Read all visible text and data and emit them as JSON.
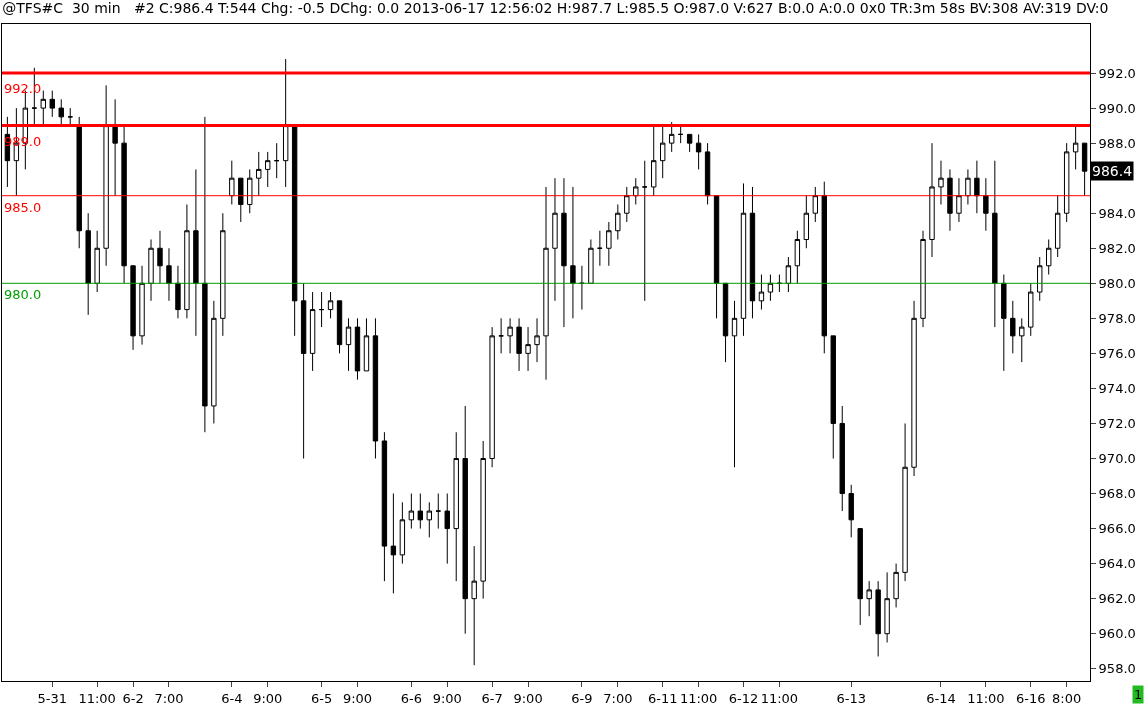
{
  "chart_data": {
    "type": "candlestick",
    "title": "@TFS#C  30 min   #2 C:986.4 T:544 Chg: -0.5 DChg: 0.0 2013-06-17 12:56:02 H:987.7 L:985.5 O:987.0 V:627 B:0.0 A:0.0 0x0 TR:3m 58s BV:308 AV:319 DV:0",
    "categories": [
      null,
      null,
      null,
      null,
      null,
      "5-31",
      null,
      null,
      null,
      null,
      "11:00",
      null,
      null,
      null,
      "6-2",
      null,
      null,
      null,
      "7:00",
      null,
      null,
      null,
      null,
      null,
      null,
      "6-4",
      null,
      null,
      null,
      "9:00",
      null,
      null,
      null,
      null,
      null,
      "6-5",
      null,
      null,
      null,
      "9:00",
      null,
      null,
      null,
      null,
      null,
      "6-6",
      null,
      null,
      null,
      "9:00",
      null,
      null,
      null,
      null,
      "6-7",
      null,
      null,
      null,
      "9:00",
      null,
      null,
      null,
      null,
      null,
      "6-9",
      null,
      null,
      null,
      "7:00",
      null,
      null,
      null,
      null,
      "6-11",
      null,
      null,
      null,
      "11:00",
      null,
      null,
      null,
      null,
      "6-12",
      null,
      null,
      null,
      "11:00",
      null,
      null,
      null,
      null,
      null,
      null,
      null,
      "6-13",
      null,
      null,
      null,
      null,
      null,
      null,
      null,
      null,
      null,
      "6-14",
      null,
      null,
      null,
      null,
      "11:00",
      null,
      null,
      null,
      null,
      "6-16",
      null,
      null,
      null,
      "8:00",
      null,
      null
    ],
    "ohlc": [
      [
        988.5,
        989.5,
        985.5,
        987
      ],
      [
        987,
        990,
        985,
        988
      ],
      [
        988,
        991,
        986.5,
        990
      ],
      [
        990,
        992.3,
        989,
        990
      ],
      [
        990,
        991,
        989,
        990.5
      ],
      [
        990.5,
        991,
        989.5,
        990
      ],
      [
        990,
        990.5,
        989,
        989.5
      ],
      [
        989.5,
        990,
        989,
        989.5
      ],
      [
        989,
        989.5,
        982,
        983
      ],
      [
        983,
        984,
        978.2,
        980
      ],
      [
        980,
        983,
        979.5,
        982
      ],
      [
        982,
        991.3,
        981,
        989
      ],
      [
        989,
        990.5,
        985,
        988
      ],
      [
        988,
        989,
        980,
        981
      ],
      [
        981,
        981,
        976.2,
        977
      ],
      [
        977,
        981,
        976.5,
        980
      ],
      [
        980,
        982.5,
        979,
        982
      ],
      [
        982,
        983,
        980,
        981
      ],
      [
        981,
        982,
        979,
        980
      ],
      [
        980,
        981,
        978,
        978.5
      ],
      [
        978.5,
        984.5,
        978,
        983
      ],
      [
        983,
        986.5,
        977,
        980
      ],
      [
        980,
        989.5,
        971.5,
        973
      ],
      [
        973,
        979,
        972,
        978
      ],
      [
        978,
        984,
        977,
        983
      ],
      [
        985,
        987,
        984.5,
        986
      ],
      [
        986,
        986,
        983.5,
        984.5
      ],
      [
        984.5,
        986.5,
        984,
        986
      ],
      [
        986,
        987.5,
        985,
        986.5
      ],
      [
        986.5,
        987.5,
        985.5,
        987
      ],
      [
        987,
        988,
        986,
        987
      ],
      [
        987,
        992.8,
        985.5,
        989
      ],
      [
        989,
        989,
        977,
        979
      ],
      [
        979,
        980,
        970,
        976
      ],
      [
        976,
        979.5,
        975,
        978.5
      ],
      [
        978.5,
        979.5,
        977.5,
        978.5
      ],
      [
        978.5,
        979.5,
        978,
        979
      ],
      [
        979,
        979,
        976,
        976.5
      ],
      [
        976.5,
        978,
        975,
        977.5
      ],
      [
        977.5,
        978,
        974.5,
        975
      ],
      [
        975,
        978,
        975,
        977
      ],
      [
        977,
        978,
        970,
        971
      ],
      [
        971,
        971.5,
        963,
        965
      ],
      [
        965,
        968,
        962.3,
        964.5
      ],
      [
        964.5,
        967.5,
        964,
        966.5
      ],
      [
        966.5,
        968,
        966,
        967
      ],
      [
        967,
        968,
        966,
        966.5
      ],
      [
        966.5,
        967.5,
        965.5,
        967
      ],
      [
        967,
        968,
        966,
        967
      ],
      [
        967,
        968,
        964,
        966
      ],
      [
        966,
        971.5,
        963,
        970
      ],
      [
        970,
        973,
        960,
        962
      ],
      [
        962,
        965,
        958.2,
        963
      ],
      [
        963,
        971,
        962,
        970
      ],
      [
        970,
        977.5,
        969.5,
        977
      ],
      [
        977,
        978,
        976,
        977
      ],
      [
        977,
        978,
        976,
        977.5
      ],
      [
        977.5,
        978,
        975,
        976
      ],
      [
        976,
        977.5,
        975,
        976.5
      ],
      [
        976.5,
        978,
        975.5,
        977
      ],
      [
        977,
        985.5,
        974.5,
        982
      ],
      [
        982,
        986,
        979,
        984
      ],
      [
        984,
        986,
        977.5,
        981
      ],
      [
        981,
        985.5,
        978,
        980
      ],
      [
        980,
        981,
        978.5,
        980
      ],
      [
        980,
        982.5,
        980,
        982
      ],
      [
        982,
        983,
        981,
        982
      ],
      [
        982,
        983.5,
        981,
        983
      ],
      [
        983,
        984.5,
        982.5,
        984
      ],
      [
        984,
        985.5,
        983.5,
        985
      ],
      [
        985,
        986,
        984.5,
        985.5
      ],
      [
        985.5,
        987,
        979,
        985.5
      ],
      [
        985.5,
        989,
        985,
        987
      ],
      [
        987,
        989,
        986,
        988
      ],
      [
        988,
        989.2,
        987.5,
        988.5
      ],
      [
        988.5,
        989,
        988,
        988.5
      ],
      [
        988.5,
        988.5,
        987.5,
        988
      ],
      [
        988,
        988.5,
        986.5,
        987.5
      ],
      [
        987.5,
        988,
        984.5,
        985
      ],
      [
        985,
        985,
        978,
        980
      ],
      [
        980,
        980,
        975.5,
        977
      ],
      [
        977,
        979,
        969.5,
        978
      ],
      [
        978,
        985.7,
        977,
        984
      ],
      [
        984,
        985.5,
        978,
        979
      ],
      [
        979,
        980.5,
        978.5,
        979.5
      ],
      [
        979.5,
        980.5,
        979,
        980
      ],
      [
        980,
        980.5,
        979.5,
        980
      ],
      [
        980,
        981.5,
        979.5,
        981
      ],
      [
        981,
        983,
        980,
        982.5
      ],
      [
        982.5,
        985,
        982,
        984
      ],
      [
        984,
        985.5,
        983.5,
        985
      ],
      [
        985,
        985.8,
        976,
        977
      ],
      [
        977,
        977,
        970,
        972
      ],
      [
        972,
        973,
        967,
        968
      ],
      [
        968,
        968.5,
        965.5,
        966.5
      ],
      [
        966,
        966,
        960.5,
        962
      ],
      [
        962,
        963,
        961,
        962.5
      ],
      [
        962.5,
        963,
        958.7,
        960
      ],
      [
        960,
        963.5,
        959.5,
        962
      ],
      [
        962,
        964,
        961.5,
        963.5
      ],
      [
        963.5,
        972,
        963,
        969.5
      ],
      [
        969.5,
        979,
        969,
        978
      ],
      [
        978,
        983,
        977.5,
        982.5
      ],
      [
        982.5,
        988,
        981.5,
        985.5
      ],
      [
        985.5,
        987,
        984.5,
        986
      ],
      [
        986,
        986.5,
        983,
        984
      ],
      [
        984,
        986,
        983.5,
        985
      ],
      [
        985,
        986.5,
        984.5,
        986
      ],
      [
        986,
        987,
        984,
        985
      ],
      [
        985,
        986,
        983,
        984
      ],
      [
        984,
        987,
        977.5,
        980
      ],
      [
        980,
        980.5,
        975,
        978
      ],
      [
        978,
        979,
        976,
        977
      ],
      [
        977,
        978,
        975.5,
        977.5
      ],
      [
        977.5,
        980,
        977,
        979.5
      ],
      [
        979.5,
        981.5,
        979,
        981
      ],
      [
        981,
        982.5,
        980.5,
        982
      ],
      [
        982,
        985,
        981.5,
        984
      ],
      [
        984,
        988,
        983.5,
        987.5
      ],
      [
        987.5,
        989,
        986.5,
        988
      ],
      [
        988,
        988,
        985,
        986.4
      ]
    ],
    "color": "#000000",
    "ylim": [
      957.3,
      994.8
    ],
    "yticks": [
      {
        "value": 958,
        "label": "958.0"
      },
      {
        "value": 960,
        "label": "960.0"
      },
      {
        "value": 962,
        "label": "962.0"
      },
      {
        "value": 964,
        "label": "964.0"
      },
      {
        "value": 966,
        "label": "966.0"
      },
      {
        "value": 968,
        "label": "968.0"
      },
      {
        "value": 970,
        "label": "970.0"
      },
      {
        "value": 972,
        "label": "972.0"
      },
      {
        "value": 974,
        "label": "974.0"
      },
      {
        "value": 976,
        "label": "976.0"
      },
      {
        "value": 978,
        "label": "978.0"
      },
      {
        "value": 980,
        "label": "980.0"
      },
      {
        "value": 982,
        "label": "982.0"
      },
      {
        "value": 984,
        "label": "984.0"
      },
      {
        "value": 986,
        "label": null
      },
      {
        "value": 988,
        "label": "988.0"
      },
      {
        "value": 990,
        "label": "990.0"
      },
      {
        "value": 992,
        "label": "992.0"
      }
    ],
    "ref_lines": [
      {
        "axis": "y",
        "value": 992,
        "label": "992.0",
        "color": "#ff0000"
      },
      {
        "axis": "y",
        "value": 989,
        "label": "989.0",
        "color": "#ff0000"
      },
      {
        "axis": "y",
        "value": 985,
        "label": "985.0",
        "color": "#ff0000"
      },
      {
        "axis": "y",
        "value": 980,
        "label": "980.0",
        "color": "#00a000"
      }
    ],
    "annotations": [
      {
        "text": "986.4",
        "y": 986.4
      },
      "1"
    ]
  }
}
